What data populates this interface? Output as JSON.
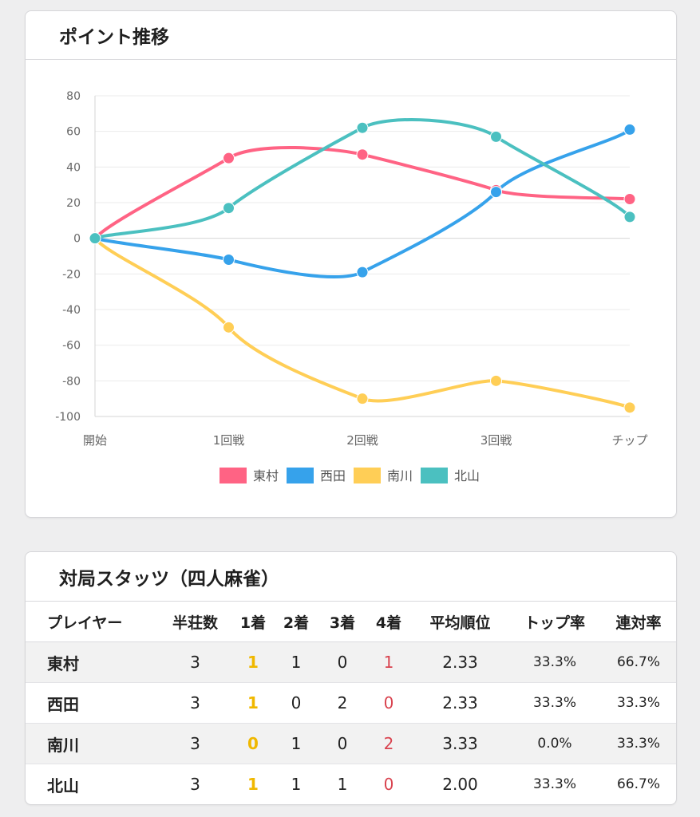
{
  "chart_card": {
    "title": "ポイント推移"
  },
  "chart_data": {
    "type": "line",
    "categories": [
      "開始",
      "1回戦",
      "2回戦",
      "3回戦",
      "チップ"
    ],
    "ylim": [
      -100,
      80
    ],
    "yticks": [
      80,
      60,
      40,
      20,
      0,
      -20,
      -40,
      -60,
      -80,
      -100
    ],
    "grid": true,
    "legend": "bottom",
    "series": [
      {
        "name": "東村",
        "color": "#ff6384",
        "values": [
          0,
          45,
          47,
          27,
          22
        ]
      },
      {
        "name": "西田",
        "color": "#36a2eb",
        "values": [
          0,
          -12,
          -19,
          26,
          61
        ]
      },
      {
        "name": "南川",
        "color": "#ffce56",
        "values": [
          0,
          -50,
          -90,
          -80,
          -95
        ]
      },
      {
        "name": "北山",
        "color": "#4bc0c0",
        "values": [
          0,
          17,
          62,
          57,
          12
        ]
      }
    ]
  },
  "stats_card": {
    "title": "対局スタッツ（四人麻雀）",
    "headers": [
      "プレイヤー",
      "半荘数",
      "1着",
      "2着",
      "3着",
      "4着",
      "平均順位",
      "トップ率",
      "連対率"
    ],
    "rows": [
      {
        "player": "東村",
        "games": "3",
        "first": "1",
        "second": "1",
        "third": "0",
        "fourth": "1",
        "avg": "2.33",
        "top_rate": "33.3%",
        "rentai": "66.7%"
      },
      {
        "player": "西田",
        "games": "3",
        "first": "1",
        "second": "0",
        "third": "2",
        "fourth": "0",
        "avg": "2.33",
        "top_rate": "33.3%",
        "rentai": "33.3%"
      },
      {
        "player": "南川",
        "games": "3",
        "first": "0",
        "second": "1",
        "third": "0",
        "fourth": "2",
        "avg": "3.33",
        "top_rate": "0.0%",
        "rentai": "33.3%"
      },
      {
        "player": "北山",
        "games": "3",
        "first": "1",
        "second": "1",
        "third": "1",
        "fourth": "0",
        "avg": "2.00",
        "top_rate": "33.3%",
        "rentai": "66.7%"
      }
    ]
  }
}
